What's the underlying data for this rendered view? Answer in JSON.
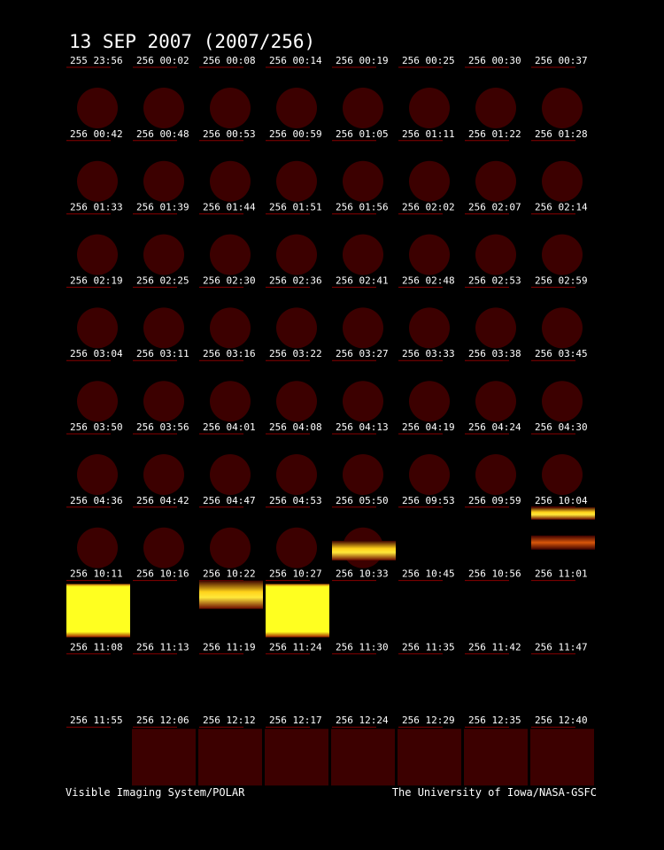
{
  "header": {
    "title": "13 SEP 2007  (2007/256)"
  },
  "frames": [
    [
      "255 23:56",
      "256 00:02",
      "256 00:08",
      "256 00:14",
      "256 00:19",
      "256 00:25",
      "256 00:30",
      "256 00:37"
    ],
    [
      "256 00:42",
      "256 00:48",
      "256 00:53",
      "256 00:59",
      "256 01:05",
      "256 01:11",
      "256 01:22",
      "256 01:28"
    ],
    [
      "256 01:33",
      "256 01:39",
      "256 01:44",
      "256 01:51",
      "256 01:56",
      "256 02:02",
      "256 02:07",
      "256 02:14"
    ],
    [
      "256 02:19",
      "256 02:25",
      "256 02:30",
      "256 02:36",
      "256 02:41",
      "256 02:48",
      "256 02:53",
      "256 02:59"
    ],
    [
      "256 03:04",
      "256 03:11",
      "256 03:16",
      "256 03:22",
      "256 03:27",
      "256 03:33",
      "256 03:38",
      "256 03:45"
    ],
    [
      "256 03:50",
      "256 03:56",
      "256 04:01",
      "256 04:08",
      "256 04:13",
      "256 04:19",
      "256 04:24",
      "256 04:30"
    ],
    [
      "256 04:36",
      "256 04:42",
      "256 04:47",
      "256 04:53",
      "256 05:50",
      "256 09:53",
      "256 09:59",
      "256 10:04"
    ],
    [
      "256 10:11",
      "256 10:16",
      "256 10:22",
      "256 10:27",
      "256 10:33",
      "256 10:45",
      "256 10:56",
      "256 11:01"
    ],
    [
      "256 11:08",
      "256 11:13",
      "256 11:19",
      "256 11:24",
      "256 11:30",
      "256 11:35",
      "256 11:42",
      "256 11:47"
    ],
    [
      "256 11:55",
      "256 12:06",
      "256 12:12",
      "256 12:17",
      "256 12:24",
      "256 12:29",
      "256 12:35",
      "256 12:40"
    ]
  ],
  "footer": {
    "left": "Visible Imaging System/POLAR",
    "right": "The University of Iowa/NASA-GSFC"
  }
}
